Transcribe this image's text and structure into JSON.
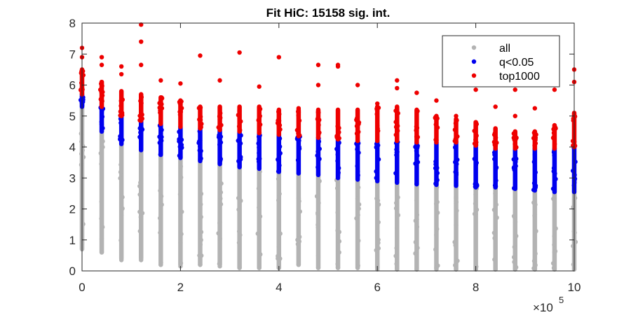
{
  "chart_data": {
    "type": "scatter",
    "title": "Fit HiC: 15158 sig. int.",
    "xlabel": "",
    "ylabel": "",
    "xlim": [
      0,
      1000000
    ],
    "ylim": [
      0,
      8
    ],
    "x_ticks": [
      0,
      200000,
      400000,
      600000,
      800000,
      1000000
    ],
    "x_tick_labels": [
      "0",
      "2",
      "4",
      "6",
      "8",
      "10"
    ],
    "x_exponent_base": "×10",
    "x_exponent_power": "5",
    "y_ticks": [
      0,
      1,
      2,
      3,
      4,
      5,
      6,
      7,
      8
    ],
    "y_tick_labels": [
      "0",
      "1",
      "2",
      "3",
      "4",
      "5",
      "6",
      "7",
      "8"
    ],
    "grid": false,
    "legend_position": "top-right",
    "x_bins": [
      0,
      40000,
      80000,
      120000,
      160000,
      200000,
      240000,
      280000,
      320000,
      360000,
      400000,
      440000,
      480000,
      520000,
      560000,
      600000,
      640000,
      680000,
      720000,
      760000,
      800000,
      840000,
      880000,
      920000,
      960000,
      1000000
    ],
    "series": [
      {
        "name": "all",
        "color": "#b3b3b3",
        "ranges": [
          [
            0.7,
            5.4
          ],
          [
            0.6,
            4.5
          ],
          [
            0.4,
            4.1
          ],
          [
            0.4,
            3.9
          ],
          [
            0.2,
            3.8
          ],
          [
            0.2,
            3.7
          ],
          [
            0.2,
            3.6
          ],
          [
            0.2,
            3.5
          ],
          [
            0.1,
            3.4
          ],
          [
            0.1,
            3.3
          ],
          [
            0.1,
            3.2
          ],
          [
            0.2,
            3.15
          ],
          [
            0.1,
            3.1
          ],
          [
            0.1,
            3.0
          ],
          [
            0.1,
            2.95
          ],
          [
            0.1,
            2.9
          ],
          [
            0.05,
            2.85
          ],
          [
            0.05,
            2.8
          ],
          [
            0.05,
            2.78
          ],
          [
            0.05,
            2.75
          ],
          [
            0.05,
            2.72
          ],
          [
            0.05,
            2.7
          ],
          [
            0.05,
            2.65
          ],
          [
            0.05,
            2.6
          ],
          [
            0.05,
            2.58
          ],
          [
            0.05,
            2.55
          ]
        ],
        "outliers_low": [
          0.9,
          0.6,
          0.35,
          0.35,
          0.2,
          0.15,
          0.2,
          0.15,
          0.1,
          0.1,
          0.1,
          0.2,
          0.1,
          0.1,
          0.1,
          0.05,
          0.1,
          0.05,
          0.1,
          0.05,
          0.05,
          0.05,
          0.05,
          0.05,
          0.05,
          0.05
        ]
      },
      {
        "name": "q<0.05",
        "color": "#0000ee",
        "ranges": [
          [
            5.3,
            5.7
          ],
          [
            4.5,
            5.3
          ],
          [
            4.1,
            5.0
          ],
          [
            3.9,
            4.85
          ],
          [
            3.75,
            4.75
          ],
          [
            3.65,
            4.65
          ],
          [
            3.55,
            4.6
          ],
          [
            3.45,
            4.55
          ],
          [
            3.35,
            4.5
          ],
          [
            3.3,
            4.45
          ],
          [
            3.2,
            4.4
          ],
          [
            3.15,
            4.35
          ],
          [
            3.1,
            4.3
          ],
          [
            3.0,
            4.25
          ],
          [
            2.95,
            4.2
          ],
          [
            2.9,
            4.2
          ],
          [
            2.85,
            4.2
          ],
          [
            2.8,
            4.15
          ],
          [
            2.78,
            4.15
          ],
          [
            2.75,
            4.15
          ],
          [
            2.7,
            4.05
          ],
          [
            2.7,
            3.95
          ],
          [
            2.65,
            3.95
          ],
          [
            2.6,
            3.95
          ],
          [
            2.55,
            3.95
          ],
          [
            2.55,
            4.0
          ]
        ]
      },
      {
        "name": "top1000",
        "color": "#ee0000",
        "ranges": [
          [
            5.7,
            6.5
          ],
          [
            5.3,
            6.1
          ],
          [
            5.0,
            5.8
          ],
          [
            4.85,
            5.7
          ],
          [
            4.75,
            5.6
          ],
          [
            4.65,
            5.5
          ],
          [
            4.6,
            5.3
          ],
          [
            4.55,
            5.3
          ],
          [
            4.5,
            5.3
          ],
          [
            4.45,
            5.3
          ],
          [
            4.4,
            5.2
          ],
          [
            4.35,
            5.2
          ],
          [
            4.3,
            5.2
          ],
          [
            4.25,
            5.2
          ],
          [
            4.2,
            5.2
          ],
          [
            4.2,
            5.3
          ],
          [
            4.2,
            5.3
          ],
          [
            4.15,
            5.2
          ],
          [
            4.15,
            5.0
          ],
          [
            4.15,
            4.9
          ],
          [
            4.05,
            4.8
          ],
          [
            3.95,
            4.6
          ],
          [
            3.95,
            4.5
          ],
          [
            3.95,
            4.5
          ],
          [
            3.95,
            4.7
          ],
          [
            4.0,
            5.1
          ]
        ],
        "outliers_high": [
          [
            0,
            7.2
          ],
          [
            0,
            6.9
          ],
          [
            40000,
            6.9
          ],
          [
            40000,
            6.65
          ],
          [
            80000,
            6.6
          ],
          [
            80000,
            6.35
          ],
          [
            120000,
            7.95
          ],
          [
            120000,
            7.4
          ],
          [
            120000,
            6.65
          ],
          [
            160000,
            6.15
          ],
          [
            200000,
            6.05
          ],
          [
            240000,
            6.95
          ],
          [
            280000,
            6.15
          ],
          [
            320000,
            7.05
          ],
          [
            360000,
            5.95
          ],
          [
            400000,
            6.9
          ],
          [
            440000,
            5.25
          ],
          [
            480000,
            6.65
          ],
          [
            480000,
            6.0
          ],
          [
            520000,
            6.65
          ],
          [
            520000,
            6.6
          ],
          [
            560000,
            6.0
          ],
          [
            600000,
            5.4
          ],
          [
            640000,
            6.15
          ],
          [
            640000,
            5.9
          ],
          [
            680000,
            5.75
          ],
          [
            720000,
            5.5
          ],
          [
            760000,
            5.0
          ],
          [
            800000,
            5.85
          ],
          [
            840000,
            5.3
          ],
          [
            880000,
            5.85
          ],
          [
            880000,
            5.0
          ],
          [
            920000,
            5.25
          ],
          [
            960000,
            5.85
          ],
          [
            1000000,
            6.5
          ],
          [
            1000000,
            6.1
          ]
        ]
      }
    ]
  }
}
